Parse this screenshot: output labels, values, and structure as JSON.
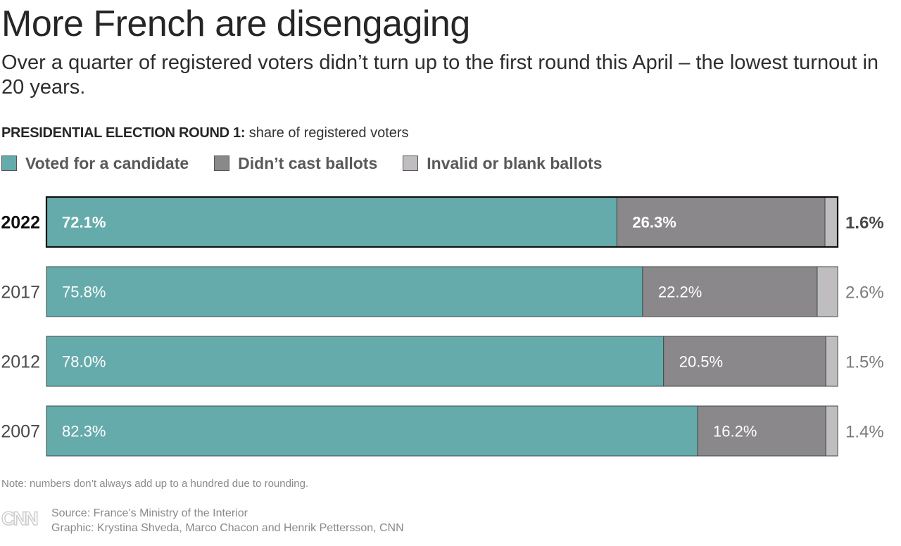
{
  "header": {
    "title": "More French are disengaging",
    "subtitle": "Over a quarter of registered voters didn’t turn up to the first round this April – the lowest turnout in 20 years."
  },
  "chart_label": {
    "bold": "PRESIDENTIAL ELECTION ROUND 1:",
    "rest": " share of registered voters"
  },
  "legend": [
    {
      "label": "Voted for a candidate",
      "color": "#66abab"
    },
    {
      "label": "Didn’t cast ballots",
      "color": "#8b888b"
    },
    {
      "label": "Invalid or blank ballots",
      "color": "#c0bdc0"
    }
  ],
  "chart_data": {
    "type": "bar",
    "orientation": "horizontal",
    "stacked": true,
    "title": "PRESIDENTIAL ELECTION ROUND 1: share of registered voters",
    "xlim": [
      0,
      100
    ],
    "categories": [
      "2022",
      "2017",
      "2012",
      "2007"
    ],
    "highlighted_category": "2022",
    "series": [
      {
        "name": "Voted for a candidate",
        "values": [
          72.1,
          75.8,
          78.0,
          82.3
        ],
        "labels": [
          "72.1%",
          "75.8%",
          "78.0%",
          "82.3%"
        ],
        "color": "#66abab"
      },
      {
        "name": "Didn’t cast ballots",
        "values": [
          26.3,
          22.2,
          20.5,
          16.2
        ],
        "labels": [
          "26.3%",
          "22.2%",
          "20.5%",
          "16.2%"
        ],
        "color": "#8b888b"
      },
      {
        "name": "Invalid or blank ballots",
        "values": [
          1.6,
          2.6,
          1.5,
          1.4
        ],
        "labels": [
          "1.6%",
          "2.6%",
          "1.5%",
          "1.4%"
        ],
        "color": "#c0bdc0"
      }
    ]
  },
  "footer": {
    "note": "Note: numbers don’t always add up to a hundred due to rounding.",
    "logo": "CNN",
    "source": "Source: France’s Ministry of the Interior",
    "graphic": "Graphic: Krystina Shveda, Marco Chacon and Henrik Pettersson, CNN"
  }
}
